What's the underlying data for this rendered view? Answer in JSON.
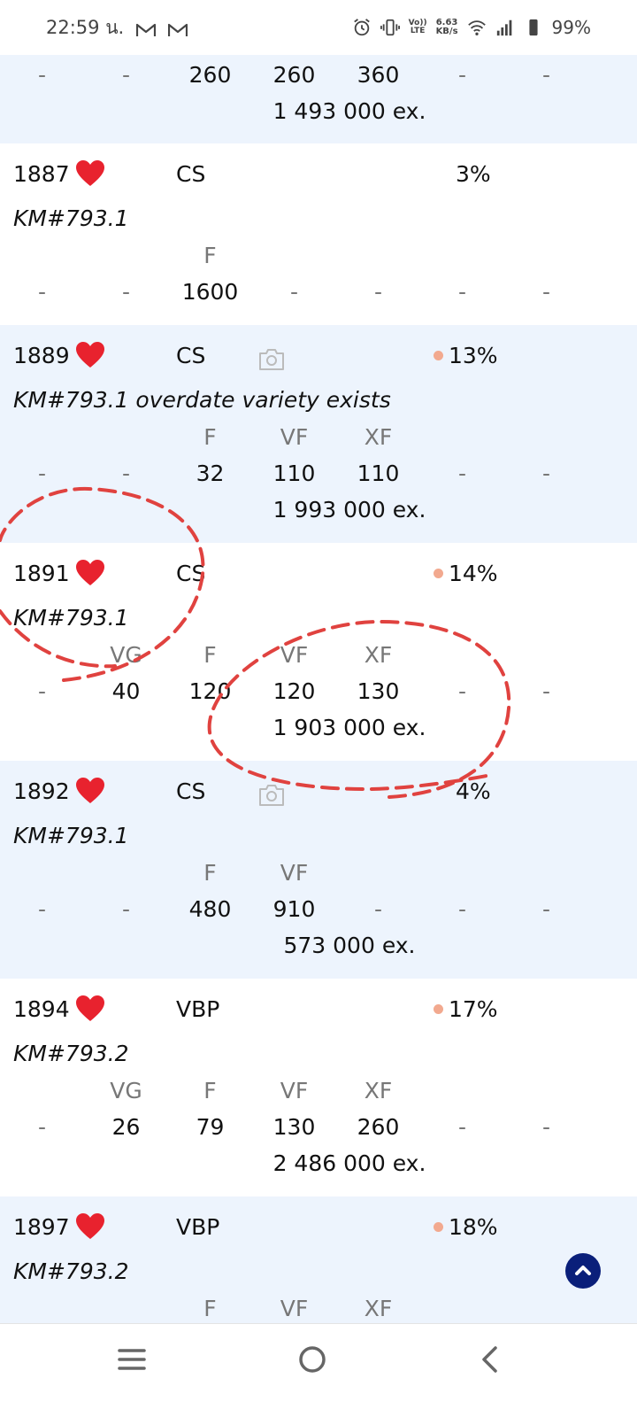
{
  "status_bar": {
    "time": "22:59 น.",
    "net_speed_value": "6.63",
    "net_speed_unit": "KB/s",
    "volte_top": "Vo))",
    "volte_bottom": "LTE",
    "battery": "99%"
  },
  "dash": "-",
  "grade_labels": [
    "VG",
    "F",
    "VF",
    "XF"
  ],
  "rows": [
    {
      "prices": [
        "-",
        "-",
        "260",
        "260",
        "360",
        "-",
        "-"
      ],
      "mintage": "1 493 000 ex."
    },
    {
      "year": "1887",
      "mint": "CS",
      "rarity": "3%",
      "km": "KM#793.1",
      "grades": [
        "",
        "",
        "F",
        "",
        "",
        "",
        ""
      ],
      "prices": [
        "-",
        "-",
        "1600",
        "-",
        "-",
        "-",
        "-"
      ]
    },
    {
      "year": "1889",
      "mint": "CS",
      "rarity": "13%",
      "km": "KM#793.1 overdate variety exists",
      "grades": [
        "",
        "",
        "F",
        "VF",
        "XF",
        "",
        ""
      ],
      "prices": [
        "-",
        "-",
        "32",
        "110",
        "110",
        "-",
        "-"
      ],
      "mintage": "1 993 000 ex."
    },
    {
      "year": "1891",
      "mint": "CS",
      "rarity": "14%",
      "km": "KM#793.1",
      "grades": [
        "",
        "VG",
        "F",
        "VF",
        "XF",
        "",
        ""
      ],
      "prices": [
        "-",
        "40",
        "120",
        "120",
        "130",
        "-",
        "-"
      ],
      "mintage": "1 903 000 ex."
    },
    {
      "year": "1892",
      "mint": "CS",
      "rarity": "4%",
      "km": "KM#793.1",
      "grades": [
        "",
        "",
        "F",
        "VF",
        "",
        "",
        ""
      ],
      "prices": [
        "-",
        "-",
        "480",
        "910",
        "-",
        "-",
        "-"
      ],
      "mintage": "573 000 ex."
    },
    {
      "year": "1894",
      "mint": "VBP",
      "rarity": "17%",
      "km": "KM#793.2",
      "grades": [
        "",
        "VG",
        "F",
        "VF",
        "XF",
        "",
        ""
      ],
      "prices": [
        "-",
        "26",
        "79",
        "130",
        "260",
        "-",
        "-"
      ],
      "mintage": "2 486 000 ex."
    },
    {
      "year": "1897",
      "mint": "VBP",
      "rarity": "18%",
      "km": "KM#793.2",
      "grades": [
        "",
        "",
        "F",
        "VF",
        "XF",
        "",
        ""
      ]
    }
  ],
  "colors": {
    "row_blue": "#edf4fd",
    "heart": "#e8222e",
    "annotation": "#e0423f",
    "rarity_dot": "#f2a98f",
    "scroll_top": "#0a1f7a"
  }
}
